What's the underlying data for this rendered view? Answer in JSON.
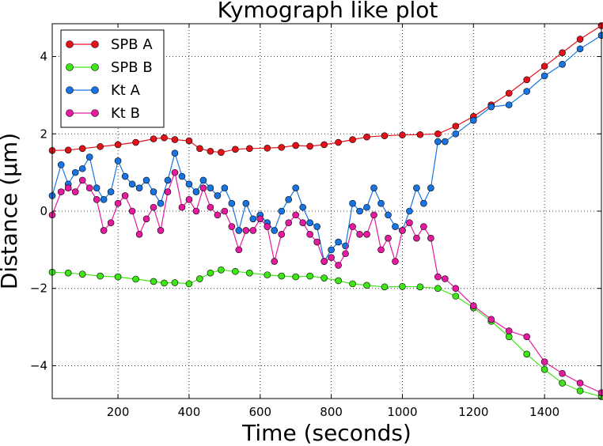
{
  "chart_data": {
    "type": "line",
    "title": "Kymograph like plot",
    "xlabel": "Time (seconds)",
    "ylabel": "Distance (µm)",
    "xlim": [
      15,
      1560
    ],
    "ylim": [
      -4.85,
      4.85
    ],
    "xticks": [
      200,
      400,
      600,
      800,
      1000,
      1200,
      1400
    ],
    "xtick_labels": [
      "200",
      "400",
      "600",
      "800",
      "1000",
      "1200",
      "1400"
    ],
    "yticks": [
      -4,
      -2,
      0,
      2,
      4
    ],
    "ytick_labels": [
      "−4",
      "−2",
      "0",
      "2",
      "4"
    ],
    "grid": true,
    "legend_position": "top-left",
    "series": [
      {
        "name": "SPB A",
        "color": "#e3121a",
        "x": [
          15,
          60,
          100,
          150,
          200,
          250,
          300,
          330,
          360,
          400,
          430,
          460,
          490,
          530,
          570,
          620,
          660,
          700,
          740,
          780,
          820,
          860,
          900,
          950,
          1000,
          1050,
          1100,
          1150,
          1200,
          1250,
          1300,
          1350,
          1400,
          1450,
          1500,
          1560
        ],
        "y": [
          1.57,
          1.58,
          1.62,
          1.67,
          1.72,
          1.78,
          1.87,
          1.9,
          1.85,
          1.82,
          1.62,
          1.55,
          1.52,
          1.6,
          1.62,
          1.63,
          1.65,
          1.7,
          1.68,
          1.72,
          1.78,
          1.85,
          1.92,
          1.95,
          1.97,
          1.98,
          2.0,
          2.2,
          2.45,
          2.75,
          3.05,
          3.4,
          3.75,
          4.1,
          4.45,
          4.8
        ]
      },
      {
        "name": "SPB B",
        "color": "#3fe617",
        "x": [
          15,
          60,
          100,
          150,
          200,
          250,
          300,
          330,
          360,
          400,
          430,
          460,
          490,
          530,
          570,
          620,
          660,
          700,
          740,
          780,
          820,
          860,
          900,
          950,
          1000,
          1050,
          1100,
          1150,
          1200,
          1250,
          1300,
          1350,
          1400,
          1450,
          1500,
          1560
        ],
        "y": [
          -1.58,
          -1.6,
          -1.63,
          -1.68,
          -1.7,
          -1.76,
          -1.82,
          -1.86,
          -1.85,
          -1.88,
          -1.75,
          -1.6,
          -1.52,
          -1.56,
          -1.6,
          -1.65,
          -1.68,
          -1.7,
          -1.68,
          -1.73,
          -1.8,
          -1.88,
          -1.92,
          -1.96,
          -1.95,
          -1.96,
          -2.0,
          -2.2,
          -2.5,
          -2.85,
          -3.25,
          -3.7,
          -4.1,
          -4.45,
          -4.65,
          -4.8
        ]
      },
      {
        "name": "Kt A",
        "color": "#1874e3",
        "x": [
          15,
          40,
          60,
          80,
          100,
          120,
          140,
          160,
          180,
          200,
          220,
          240,
          260,
          280,
          300,
          320,
          340,
          360,
          380,
          400,
          420,
          440,
          460,
          480,
          500,
          520,
          540,
          560,
          580,
          600,
          620,
          640,
          660,
          680,
          700,
          720,
          740,
          760,
          780,
          800,
          820,
          840,
          860,
          880,
          900,
          920,
          940,
          960,
          980,
          1000,
          1020,
          1040,
          1060,
          1080,
          1100,
          1120,
          1150,
          1200,
          1250,
          1300,
          1350,
          1400,
          1450,
          1500,
          1560
        ],
        "y": [
          0.4,
          1.2,
          0.7,
          1.0,
          1.1,
          1.4,
          0.6,
          0.3,
          0.5,
          1.3,
          0.9,
          0.7,
          0.6,
          0.8,
          0.5,
          0.2,
          0.8,
          1.5,
          0.9,
          0.7,
          0.5,
          0.8,
          0.6,
          0.4,
          0.6,
          0.2,
          -0.5,
          0.2,
          -0.2,
          -0.1,
          -0.3,
          -0.5,
          0.0,
          0.3,
          0.6,
          0.1,
          -0.3,
          -0.4,
          -1.3,
          -1.0,
          -0.8,
          -0.9,
          0.2,
          0.0,
          0.1,
          0.6,
          0.2,
          -0.1,
          -0.4,
          -0.5,
          0.0,
          0.6,
          0.2,
          0.6,
          1.8,
          1.8,
          2.0,
          2.35,
          2.7,
          2.75,
          3.1,
          3.5,
          3.8,
          4.2,
          4.55
        ]
      },
      {
        "name": "Kt B",
        "color": "#e61a9f",
        "x": [
          15,
          40,
          60,
          80,
          100,
          120,
          140,
          160,
          180,
          200,
          220,
          240,
          260,
          280,
          300,
          320,
          340,
          360,
          380,
          400,
          420,
          440,
          460,
          480,
          500,
          520,
          540,
          560,
          580,
          600,
          620,
          640,
          660,
          680,
          700,
          720,
          740,
          760,
          780,
          800,
          820,
          840,
          860,
          880,
          900,
          920,
          940,
          960,
          980,
          1000,
          1020,
          1040,
          1060,
          1080,
          1100,
          1120,
          1150,
          1200,
          1250,
          1300,
          1350,
          1400,
          1450,
          1500,
          1560
        ],
        "y": [
          -0.1,
          0.5,
          0.6,
          0.5,
          0.8,
          0.6,
          0.3,
          -0.5,
          -0.3,
          0.2,
          0.4,
          0.0,
          -0.6,
          -0.2,
          0.1,
          -0.5,
          0.5,
          1.0,
          0.1,
          0.3,
          0.0,
          0.6,
          0.1,
          -0.1,
          0.0,
          -0.4,
          -1.0,
          -0.5,
          -0.5,
          -0.2,
          -0.4,
          -1.3,
          -0.6,
          -0.3,
          -0.1,
          -0.3,
          -0.6,
          -0.8,
          -1.3,
          -1.2,
          -1.4,
          -1.1,
          -0.4,
          -0.6,
          -0.6,
          -0.1,
          -1.0,
          -0.7,
          -1.3,
          -0.5,
          -0.3,
          -0.7,
          -0.4,
          -0.7,
          -1.7,
          -1.75,
          -2.0,
          -2.45,
          -2.8,
          -3.1,
          -3.25,
          -3.9,
          -4.2,
          -4.45,
          -4.7
        ]
      }
    ]
  }
}
